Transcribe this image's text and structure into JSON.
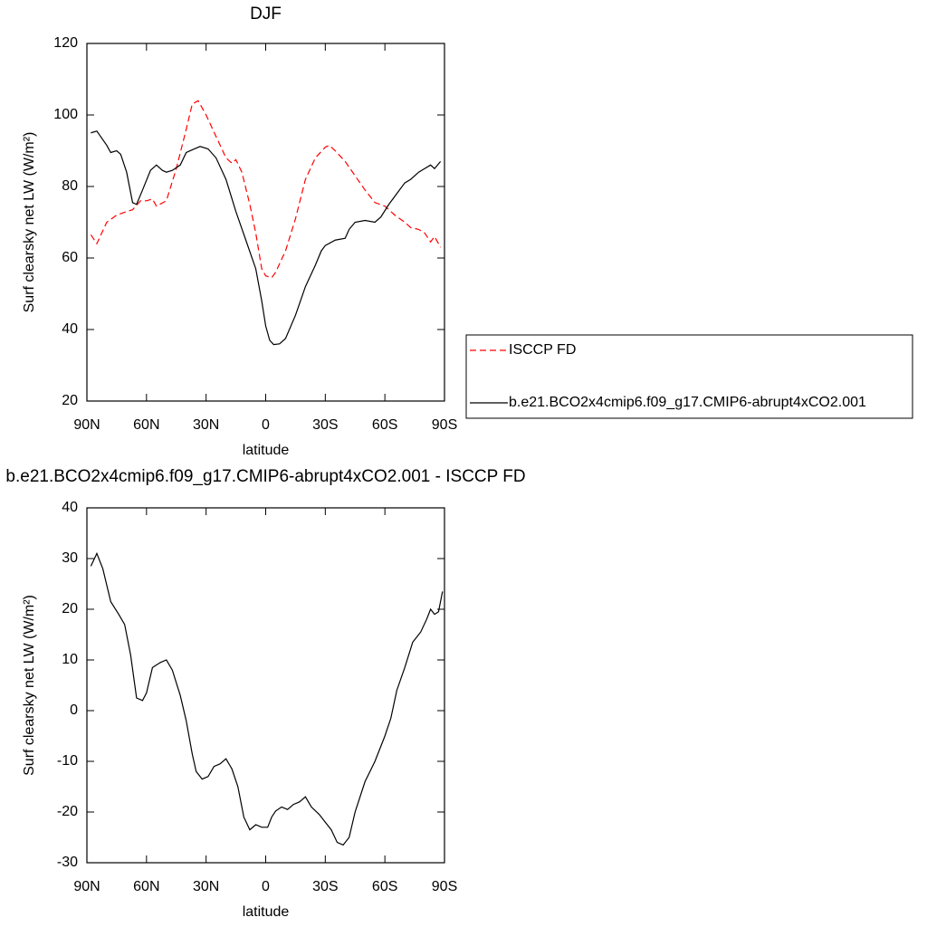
{
  "chart_data": [
    {
      "type": "line",
      "title": "DJF",
      "xlabel": "latitude",
      "ylabel": "Surf clearsky net LW (W/m²)",
      "xlim": [
        90,
        -90
      ],
      "xticks": [
        {
          "value": 90,
          "label": "90N"
        },
        {
          "value": 60,
          "label": "60N"
        },
        {
          "value": 30,
          "label": "30N"
        },
        0,
        {
          "value": -30,
          "label": "30S"
        },
        {
          "value": -60,
          "label": "60S"
        },
        {
          "value": -90,
          "label": "90S"
        }
      ],
      "ylim": [
        20,
        120
      ],
      "yticks": [
        20,
        40,
        60,
        80,
        100,
        120
      ],
      "legend": "outside-right",
      "series": [
        {
          "name": "ISCCP FD",
          "color": "#ff0000",
          "line_style": "dashed",
          "x": [
            88,
            85,
            80,
            75,
            70,
            67,
            63,
            60,
            57,
            55,
            50,
            45,
            40,
            37,
            34,
            30,
            25,
            20,
            17,
            15,
            12,
            8,
            5,
            2,
            0,
            -3,
            -5,
            -10,
            -15,
            -20,
            -25,
            -30,
            -32,
            -35,
            -40,
            -45,
            -50,
            -55,
            -60,
            -65,
            -70,
            -73,
            -77,
            -80,
            -83,
            -85,
            -88
          ],
          "values": [
            66.5,
            64,
            70,
            72,
            73,
            73.5,
            76,
            76,
            76.5,
            74.5,
            76,
            85,
            96,
            103,
            104,
            100,
            94,
            88,
            86.5,
            87.5,
            84,
            75,
            67,
            57,
            55,
            54.5,
            56,
            62,
            71,
            82,
            88,
            91,
            91.5,
            90,
            87,
            83,
            79,
            75.5,
            74.5,
            72,
            70,
            68.5,
            68,
            67,
            64.5,
            66,
            63
          ]
        },
        {
          "name": "b.e21.BCO2x4cmip6.f09_g17.CMIP6-abrupt4xCO2.001",
          "color": "#000000",
          "line_style": "solid",
          "x": [
            88,
            85,
            80,
            78,
            75,
            73,
            70,
            67,
            65,
            62,
            58,
            55,
            52,
            50,
            47,
            43,
            40,
            36,
            33,
            29,
            25,
            20,
            15,
            10,
            5,
            2,
            0,
            -2,
            -4,
            -7,
            -10,
            -15,
            -20,
            -25,
            -28,
            -30,
            -35,
            -40,
            -42,
            -45,
            -50,
            -55,
            -58,
            -62,
            -66,
            -70,
            -73,
            -77,
            -80,
            -83,
            -85,
            -88
          ],
          "values": [
            95,
            95.5,
            91.5,
            89.5,
            90,
            89,
            84,
            75.5,
            75,
            79,
            84.5,
            86,
            84.5,
            84,
            84.5,
            86,
            89.5,
            90.5,
            91.2,
            90.5,
            88,
            82,
            73,
            65,
            57,
            48,
            41,
            37,
            35.8,
            36,
            37.5,
            44,
            52,
            58,
            62,
            63.5,
            65,
            65.5,
            68,
            70,
            70.5,
            70,
            71.5,
            75,
            78,
            81,
            82,
            84,
            85,
            86,
            85,
            87
          ]
        }
      ]
    },
    {
      "type": "line",
      "title": "b.e21.BCO2x4cmip6.f09_g17.CMIP6-abrupt4xCO2.001 - ISCCP FD",
      "xlabel": "latitude",
      "ylabel": "Surf clearsky net LW (W/m²)",
      "xlim": [
        90,
        -90
      ],
      "xticks": [
        {
          "value": 90,
          "label": "90N"
        },
        {
          "value": 60,
          "label": "60N"
        },
        {
          "value": 30,
          "label": "30N"
        },
        0,
        {
          "value": -30,
          "label": "30S"
        },
        {
          "value": -60,
          "label": "60S"
        },
        {
          "value": -90,
          "label": "90S"
        }
      ],
      "ylim": [
        -30,
        40
      ],
      "yticks": [
        -30,
        -20,
        -10,
        0,
        10,
        20,
        30,
        40
      ],
      "series": [
        {
          "color": "#000000",
          "line_style": "solid",
          "x": [
            88,
            85,
            82,
            78,
            74,
            71,
            68,
            65,
            62,
            60,
            57,
            53,
            50,
            47,
            43,
            40,
            37,
            35,
            32,
            29,
            26,
            23,
            20,
            17,
            14,
            11,
            8,
            5,
            2,
            -1,
            -3,
            -5,
            -8,
            -11,
            -14,
            -17,
            -20,
            -23,
            -27,
            -30,
            -33,
            -36,
            -39,
            -42,
            -45,
            -50,
            -55,
            -60,
            -63,
            -66,
            -70,
            -74,
            -78,
            -81,
            -83,
            -85,
            -87,
            -89
          ],
          "values": [
            28.5,
            31,
            28,
            21.5,
            19,
            17,
            11,
            2.5,
            2,
            3.5,
            8.5,
            9.5,
            10,
            8,
            3,
            -2,
            -8.5,
            -12,
            -13.5,
            -13,
            -11,
            -10.5,
            -9.5,
            -11.5,
            -15,
            -21,
            -23.5,
            -22.5,
            -23,
            -23,
            -21,
            -19.8,
            -19,
            -19.5,
            -18.5,
            -18,
            -17,
            -19,
            -20.5,
            -22,
            -23.5,
            -26,
            -26.5,
            -25,
            -20,
            -14,
            -10,
            -5,
            -1.5,
            4,
            8.5,
            13.5,
            15.5,
            18,
            20,
            19,
            19.5,
            23.5
          ]
        }
      ]
    }
  ]
}
